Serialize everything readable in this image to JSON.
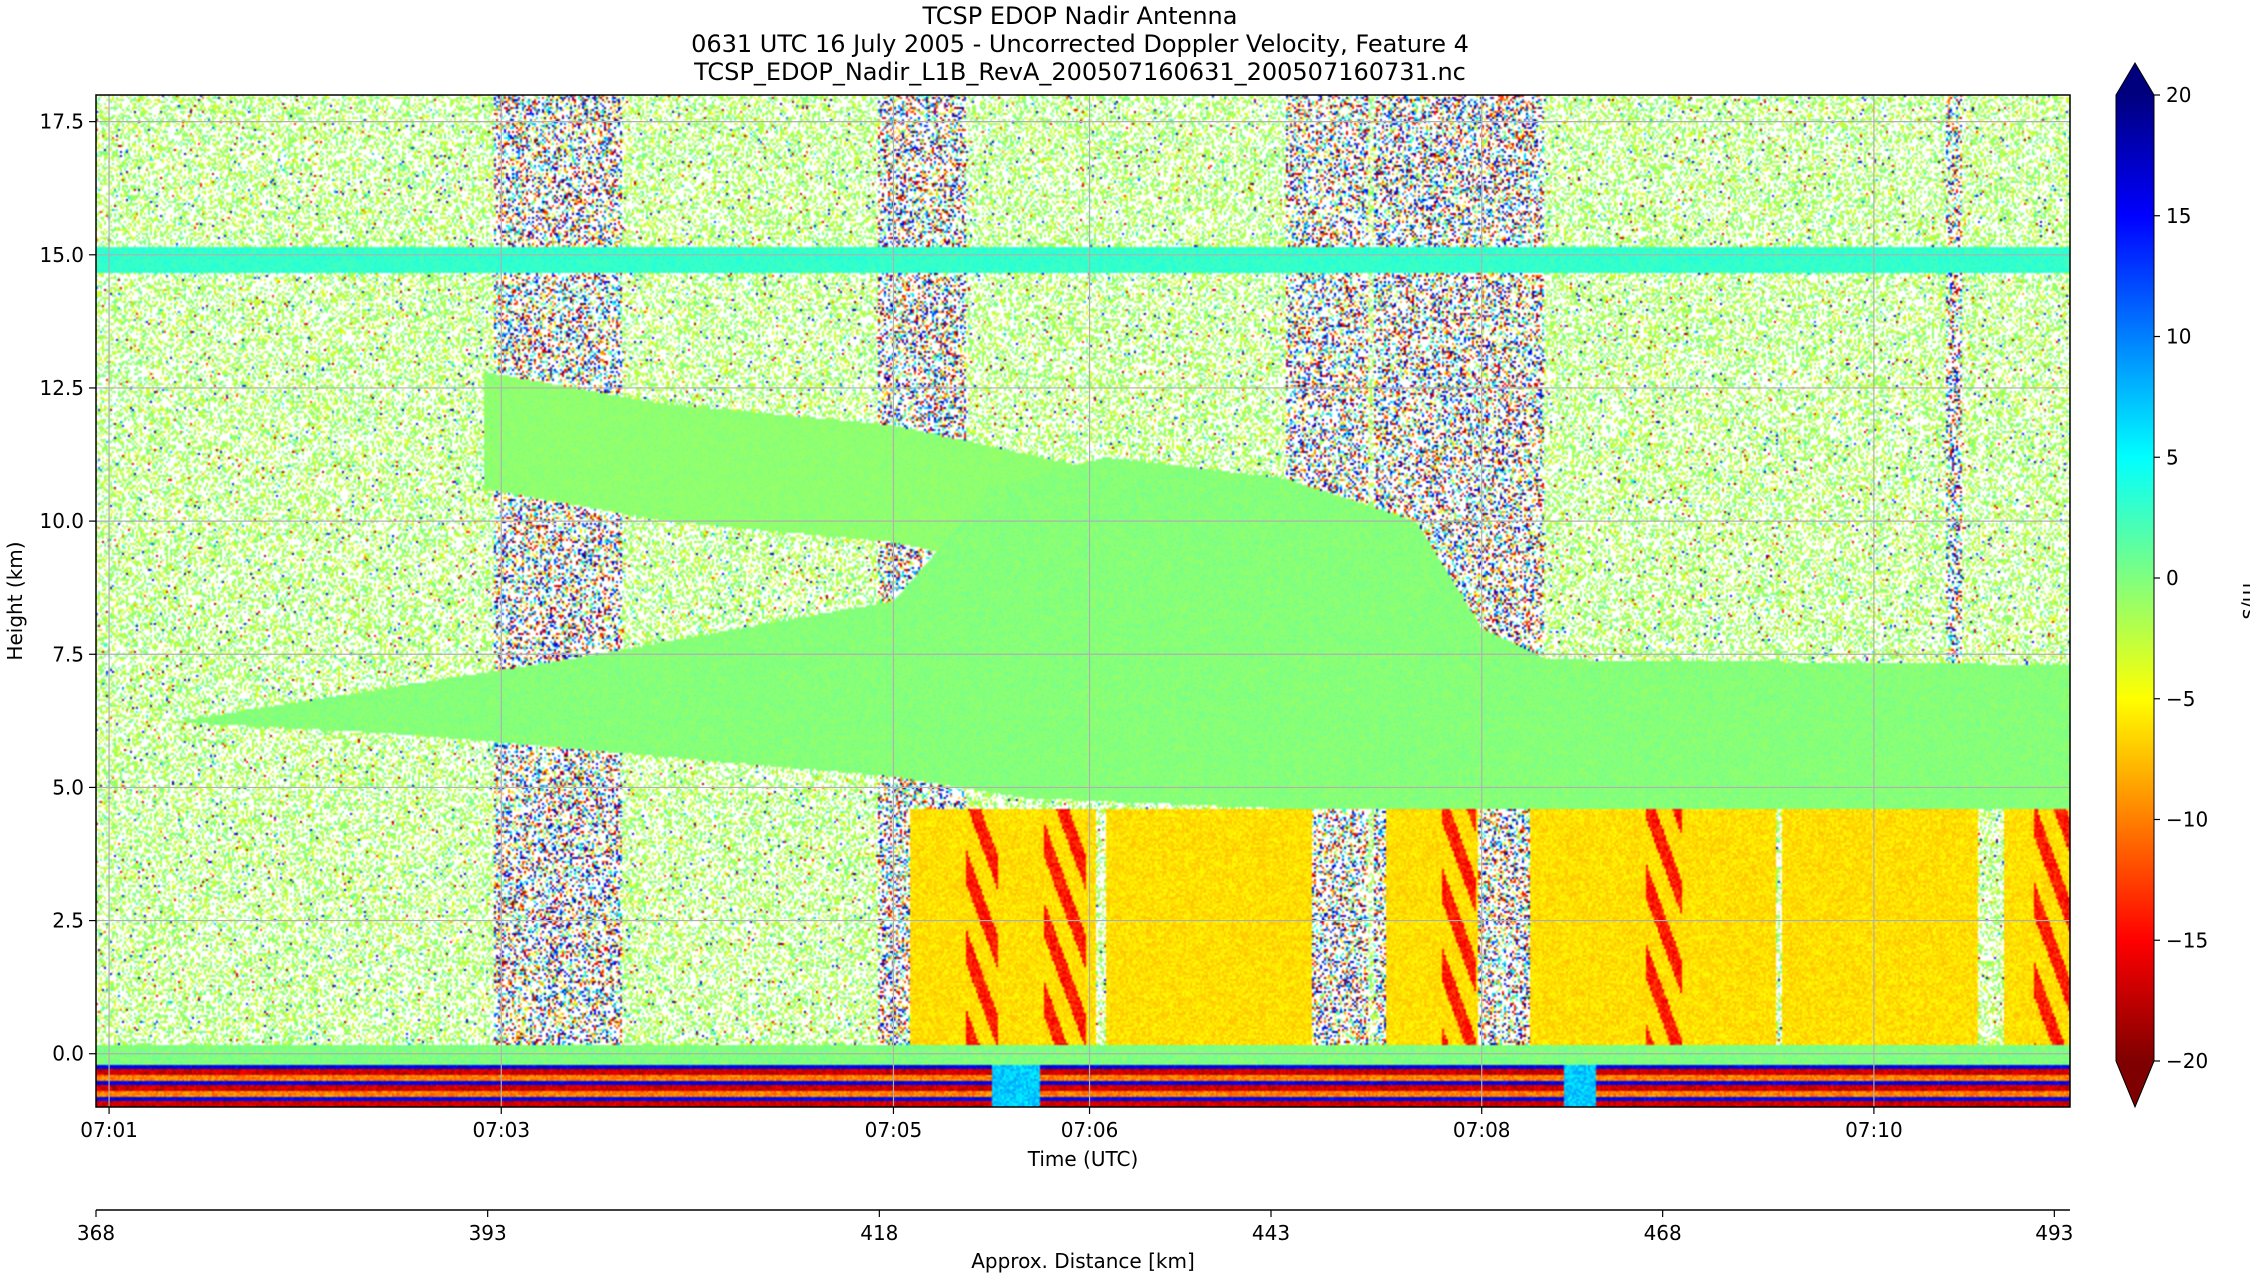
{
  "chart_data": {
    "type": "heatmap",
    "title_lines": [
      "TCSP EDOP Nadir Antenna",
      "0631 UTC 16 July 2005 - Uncorrected Doppler Velocity, Feature 4",
      "TCSP_EDOP_Nadir_L1B_RevA_200507160631_200507160731.nc"
    ],
    "xlabel": "Time (UTC)",
    "ylabel": "Height (km)",
    "x2label": "Approx. Distance [km]",
    "colorbar_label": "m/s",
    "x_ticks": [
      "07:01",
      "07:03",
      "07:05",
      "07:06",
      "07:08",
      "07:10"
    ],
    "x_tick_seconds": [
      60,
      180,
      300,
      360,
      480,
      600
    ],
    "x_range_seconds": [
      56,
      660
    ],
    "y_ticks": [
      "0.0",
      "2.5",
      "5.0",
      "7.5",
      "10.0",
      "12.5",
      "15.0",
      "17.5"
    ],
    "y_tick_values": [
      0,
      2.5,
      5,
      7.5,
      10,
      12.5,
      15,
      17.5
    ],
    "ylim": [
      -1,
      18
    ],
    "x2_ticks": [
      "368",
      "393",
      "418",
      "443",
      "468",
      "493"
    ],
    "x2_tick_values": [
      368,
      393,
      418,
      443,
      468,
      493
    ],
    "x2_range": [
      368,
      494
    ],
    "colorbar_ticks": [
      "20",
      "15",
      "10",
      "5",
      "0",
      "−5",
      "−10",
      "−15",
      "−20"
    ],
    "colorbar_values": [
      20,
      15,
      10,
      5,
      0,
      -5,
      -10,
      -15,
      -20
    ],
    "vlim": [
      -20,
      20
    ],
    "colormap": "jet",
    "grid": true,
    "features": {
      "aircraft_altitude_band_km": 14.9,
      "anvil_top_km": 12.5,
      "melting_layer_km": 4.6,
      "surface_km": 0.0,
      "noise_columns_seconds": [
        [
          178,
          217
        ],
        [
          295,
          322
        ],
        [
          420,
          445
        ],
        [
          447,
          499
        ],
        [
          622,
          627
        ]
      ],
      "rain_cells_seconds": [
        [
          305,
          362
        ],
        [
          365,
          428
        ],
        [
          451,
          479
        ],
        [
          495,
          570
        ],
        [
          572,
          632
        ],
        [
          640,
          660
        ]
      ],
      "updraft_streaks_seconds": [
        [
          322,
          332
        ],
        [
          346,
          359
        ],
        [
          468,
          478
        ],
        [
          530,
          541
        ],
        [
          649,
          660
        ]
      ]
    }
  }
}
